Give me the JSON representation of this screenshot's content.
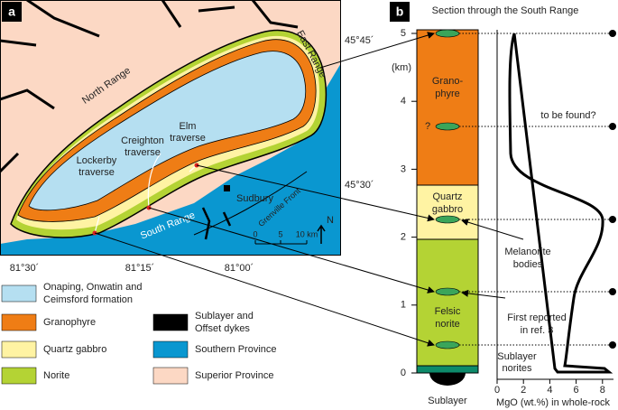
{
  "panel_a": {
    "label": "a",
    "latitudes": [
      "45°45´",
      "45°30´"
    ],
    "longitudes": [
      "81°30´",
      "81°15´",
      "81°00´"
    ],
    "places": {
      "north_range": "North Range",
      "east_range": "East Range",
      "south_range": "South Range",
      "sudbury": "Sudbury",
      "grenville_front": "Grenville Front",
      "elm": [
        "Elm",
        "traverse"
      ],
      "creighton": [
        "Creighton",
        "traverse"
      ],
      "lockerby": [
        "Lockerby",
        "traverse"
      ]
    },
    "scale": [
      "0",
      "5",
      "10 km"
    ],
    "north": "N",
    "legend": [
      {
        "label": [
          "Onaping, Onwatin and",
          "Ceimsford formation"
        ],
        "color": "#b5dff1"
      },
      {
        "label": [
          "Granophyre"
        ],
        "color": "#ef7d15"
      },
      {
        "label": [
          "Quartz gabbro"
        ],
        "color": "#fff3a3"
      },
      {
        "label": [
          "Norite"
        ],
        "color": "#b4d334"
      },
      {
        "label": [
          "Sublayer and",
          "Offset dykes"
        ],
        "color": "#000000"
      },
      {
        "label": [
          "Southern Province"
        ],
        "color": "#0a97d0"
      },
      {
        "label": [
          "Superior Province"
        ],
        "color": "#fcd8c4"
      }
    ]
  },
  "panel_b": {
    "label": "b",
    "title": "Section through the South Range",
    "depth_axis": {
      "label": "(km)",
      "ticks": [
        0,
        1,
        2,
        3,
        4,
        5
      ]
    },
    "mgo_axis": {
      "label": "MgO (wt.%) in whole-rock",
      "ticks": [
        0,
        2,
        4,
        6,
        8
      ]
    },
    "layers": {
      "granophyre": [
        "Grano-",
        "phyre"
      ],
      "quartz_gabbro": [
        "Quartz",
        "gabbro"
      ],
      "norite": [
        "Felsic",
        "norite"
      ]
    },
    "question": "?",
    "annotations": {
      "to_be_found": "to be found?",
      "melanorite": [
        "Melanorite",
        "bodies"
      ],
      "first_reported": [
        "First reported",
        "in ref. 3"
      ],
      "sublayer_norites": [
        "Sublayer",
        "norites"
      ],
      "sublayer": "Sublayer"
    }
  }
}
